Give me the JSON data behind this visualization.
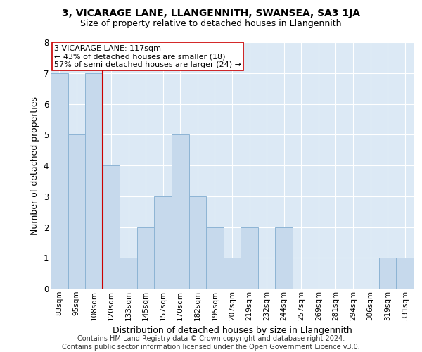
{
  "title": "3, VICARAGE LANE, LLANGENNITH, SWANSEA, SA3 1JA",
  "subtitle": "Size of property relative to detached houses in Llangennith",
  "xlabel": "Distribution of detached houses by size in Llangennith",
  "ylabel": "Number of detached properties",
  "bar_labels": [
    "83sqm",
    "95sqm",
    "108sqm",
    "120sqm",
    "133sqm",
    "145sqm",
    "157sqm",
    "170sqm",
    "182sqm",
    "195sqm",
    "207sqm",
    "219sqm",
    "232sqm",
    "244sqm",
    "257sqm",
    "269sqm",
    "281sqm",
    "294sqm",
    "306sqm",
    "319sqm",
    "331sqm"
  ],
  "bar_values": [
    7,
    5,
    7,
    4,
    1,
    2,
    3,
    5,
    3,
    2,
    1,
    2,
    0,
    2,
    0,
    0,
    0,
    0,
    0,
    1,
    1
  ],
  "bar_color": "#c6d9ec",
  "bar_edge_color": "#8db4d4",
  "vline_color": "#cc0000",
  "vline_pos": 2.5,
  "annotation_line1": "3 VICARAGE LANE: 117sqm",
  "annotation_line2": "← 43% of detached houses are smaller (18)",
  "annotation_line3": "57% of semi-detached houses are larger (24) →",
  "annotation_box_color": "#ffffff",
  "annotation_box_edge_color": "#cc0000",
  "ylim": [
    0,
    8
  ],
  "yticks": [
    0,
    1,
    2,
    3,
    4,
    5,
    6,
    7,
    8
  ],
  "footer_text": "Contains HM Land Registry data © Crown copyright and database right 2024.\nContains public sector information licensed under the Open Government Licence v3.0.",
  "bg_color": "#dce9f5",
  "title_fontsize": 10,
  "subtitle_fontsize": 9,
  "axis_label_fontsize": 8,
  "tick_fontsize": 7.5,
  "annotation_fontsize": 8,
  "footer_fontsize": 7
}
